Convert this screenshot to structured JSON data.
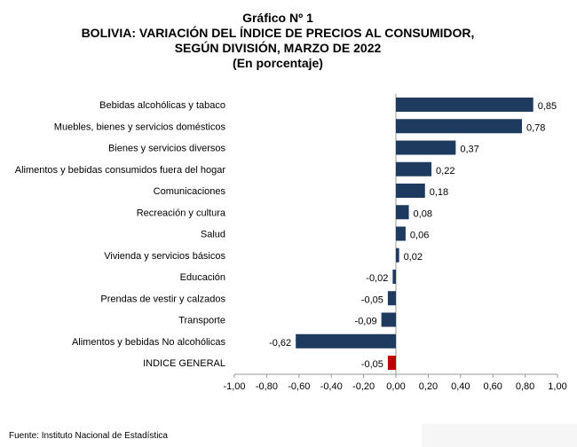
{
  "chart_data": {
    "type": "bar",
    "orientation": "horizontal",
    "title": [
      "Gráfico Nº 1",
      "BOLIVIA: VARIACIÓN DEL ÍNDICE DE PRECIOS AL CONSUMIDOR,",
      "SEGÚN DIVISIÓN, MARZO DE 2022",
      "(En porcentaje)"
    ],
    "categories": [
      "Bebidas alcohólicas y tabaco",
      "Muebles, bienes y servicios domésticos",
      "Bienes y servicios diversos",
      "Alimentos y bebidas consumidos fuera del hogar",
      "Comunicaciones",
      "Recreación y cultura",
      "Salud",
      "Vivienda y servicios básicos",
      "Educación",
      "Prendas de vestir y calzados",
      "Transporte",
      "Alimentos y bebidas No alcohólicas",
      "INDICE GENERAL"
    ],
    "values": [
      0.85,
      0.78,
      0.37,
      0.22,
      0.18,
      0.08,
      0.06,
      0.02,
      -0.02,
      -0.05,
      -0.09,
      -0.62,
      -0.05
    ],
    "value_labels": [
      "0,85",
      "0,78",
      "0,37",
      "0,22",
      "0,18",
      "0,08",
      "0,06",
      "0,02",
      "-0,02",
      "-0,05",
      "-0,09",
      "-0,62",
      "-0,05"
    ],
    "highlight_index": 12,
    "xlim": [
      -1.0,
      1.0
    ],
    "xticks": [
      -1,
      -0.8,
      -0.6,
      -0.4,
      -0.2,
      0,
      0.2,
      0.4,
      0.6,
      0.8,
      1
    ],
    "xtick_labels": [
      "-1,00",
      "-0,80",
      "-0,60",
      "-0,40",
      "-0,20",
      "0,00",
      "0,20",
      "0,40",
      "0,60",
      "0,80",
      "1,00"
    ],
    "xlabel": "",
    "ylabel": "",
    "colors": {
      "bar": "#1f3a5f",
      "highlight": "#c00000"
    },
    "source": "Fuente: Instituto Nacional de Estadística"
  }
}
